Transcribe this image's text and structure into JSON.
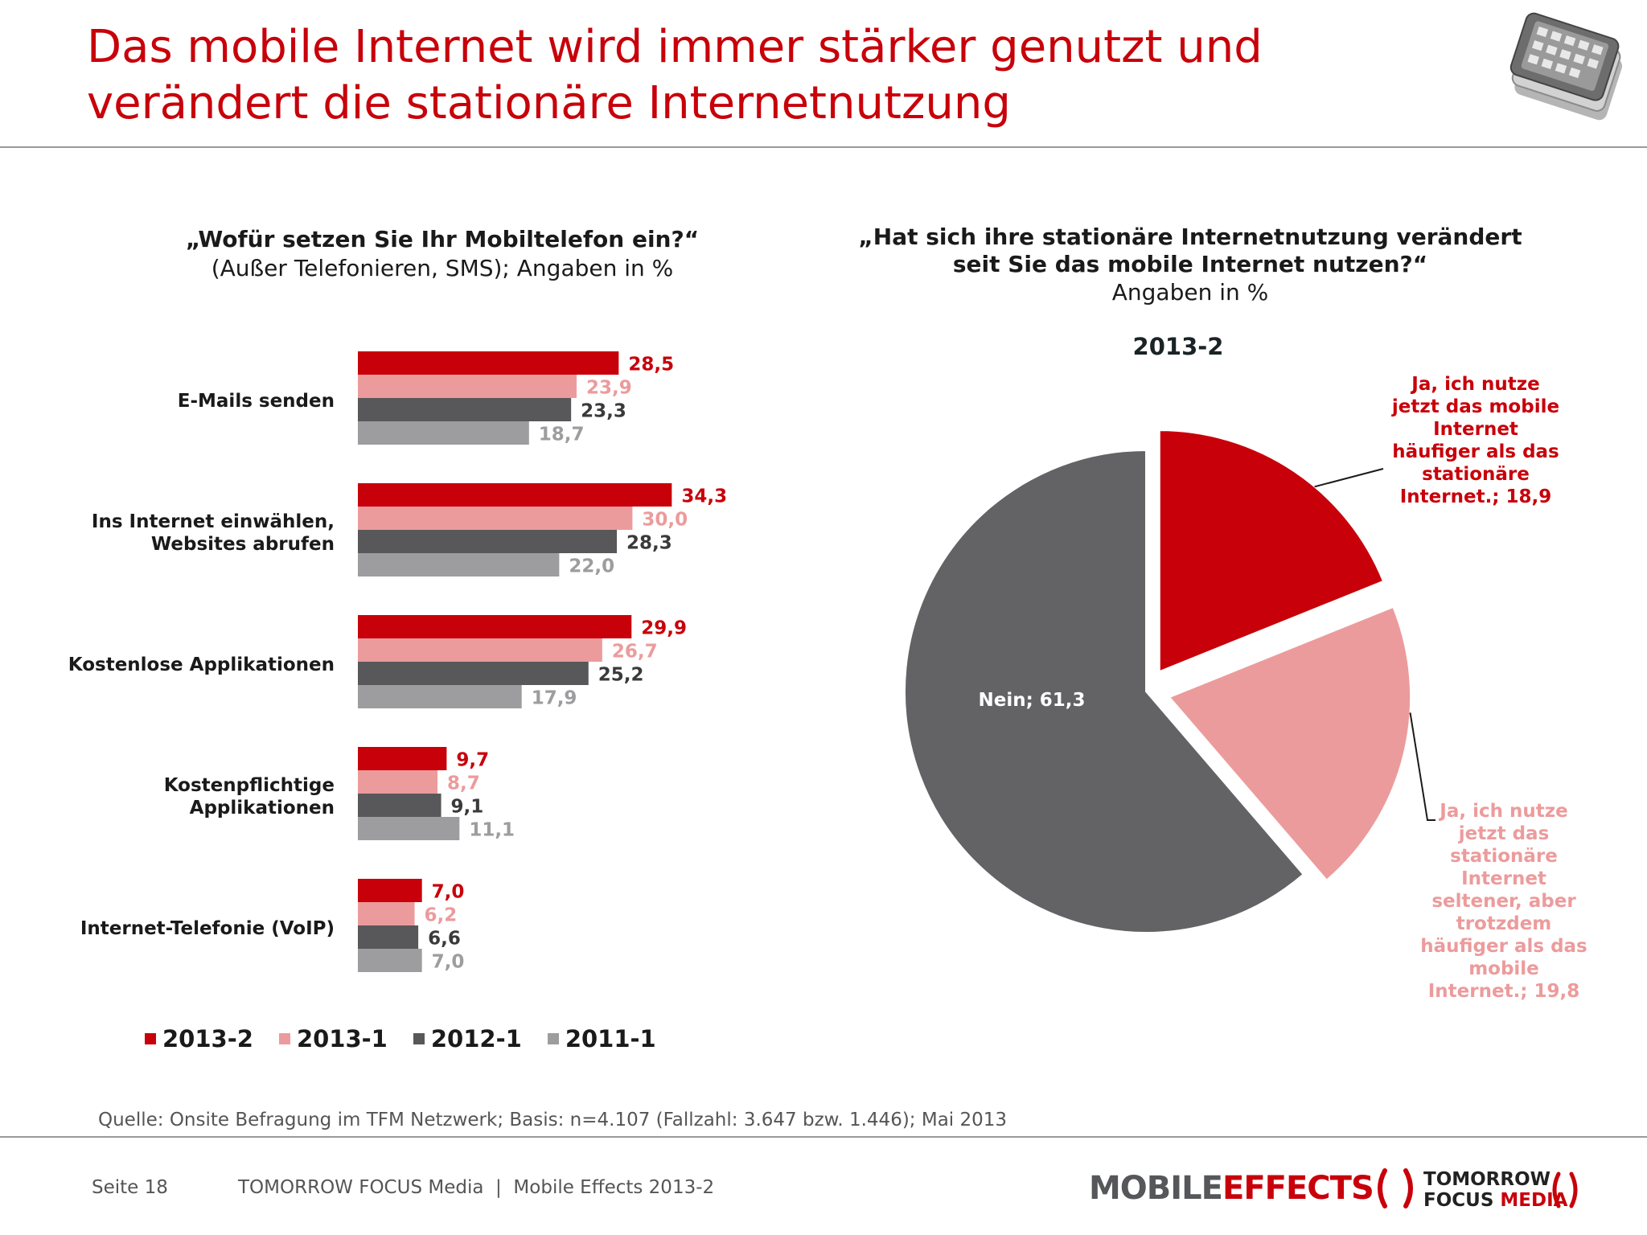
{
  "header": {
    "title_line1": "Das mobile Internet wird immer stärker genutzt und",
    "title_line2": "verändert die stationäre Internetnutzung",
    "icon": "smartphone-icon"
  },
  "bar_panel": {
    "question": "„Wofür setzen Sie Ihr Mobiltelefon ein?“",
    "subtitle": "(Außer Telefonieren, SMS); Angaben in %"
  },
  "pie_panel": {
    "question_line1": "„Hat sich ihre stationäre Internetnutzung verändert",
    "question_line2": "seit Sie das mobile Internet nutzen?“",
    "subtitle": "Angaben in %"
  },
  "chart_data": [
    {
      "type": "bar",
      "orientation": "horizontal",
      "categories": [
        "E-Mails senden",
        "Ins Internet einwählen,\nWebsites abrufen",
        "Kostenlose Applikationen",
        "Kostenpflichtige\nApplikationen",
        "Internet-Telefonie (VoIP)"
      ],
      "category_lines": [
        [
          "E-Mails senden"
        ],
        [
          "Ins Internet einwählen,",
          "Websites abrufen"
        ],
        [
          "Kostenlose Applikationen"
        ],
        [
          "Kostenpflichtige",
          "Applikationen"
        ],
        [
          "Internet-Telefonie (VoIP)"
        ]
      ],
      "series": [
        {
          "name": "2013-2",
          "color": "#c8000a",
          "label_color": "#c8000a",
          "values": [
            28.5,
            34.3,
            29.9,
            9.7,
            7.0
          ],
          "labels": [
            "28,5",
            "34,3",
            "29,9",
            "9,7",
            "7,0"
          ]
        },
        {
          "name": "2013-1",
          "color": "#ec9b9c",
          "label_color": "#ec9b9c",
          "values": [
            23.9,
            30.0,
            26.7,
            8.7,
            6.2
          ],
          "labels": [
            "23,9",
            "30,0",
            "26,7",
            "8,7",
            "6,2"
          ]
        },
        {
          "name": "2012-1",
          "color": "#58585a",
          "label_color": "#3a3a3a",
          "values": [
            23.3,
            28.3,
            25.2,
            9.1,
            6.6
          ],
          "labels": [
            "23,3",
            "28,3",
            "25,2",
            "9,1",
            "6,6"
          ]
        },
        {
          "name": "2011-1",
          "color": "#9d9c9e",
          "label_color": "#9d9c9e",
          "values": [
            18.7,
            22.0,
            17.9,
            11.1,
            7.0
          ],
          "labels": [
            "18,7",
            "22,0",
            "17,9",
            "11,1",
            "7,0"
          ]
        }
      ],
      "xlim": [
        0,
        40
      ],
      "grid": false,
      "legend_position": "bottom"
    },
    {
      "type": "pie",
      "title": "2013-2",
      "slices": [
        {
          "label_lines": [
            "Ja, ich nutze",
            "jetzt das mobile",
            "Internet",
            "häufiger als das",
            "stationäre",
            "Internet.; 18,9"
          ],
          "value": 18.9,
          "color": "#c8000a",
          "label_color": "#c8000a",
          "exploded": true
        },
        {
          "label_lines": [
            "Ja, ich nutze",
            "jetzt das",
            "stationäre",
            "Internet",
            "seltener, aber",
            "trotzdem",
            "häufiger als das",
            "mobile",
            "Internet.; 19,8"
          ],
          "value": 19.8,
          "color": "#ec9b9c",
          "label_color": "#ec9b9c",
          "exploded": true
        },
        {
          "label_lines": [
            "Nein; 61,3"
          ],
          "value": 61.3,
          "color": "#636265",
          "label_color": "#ffffff",
          "exploded": false
        }
      ]
    }
  ],
  "source": "Quelle: Onsite Befragung im TFM Netzwerk; Basis: n=4.107 (Fallzahl: 3.647 bzw. 1.446); Mai 2013",
  "footer": {
    "page": "Seite 18",
    "text": "TOMORROW FOCUS Media  |  Mobile Effects 2013-2",
    "brand1_a": "MOBILE",
    "brand1_b": "EFFECTS",
    "brand2_line1": "TOMORROW",
    "brand2_line2a": "FOCUS",
    "brand2_line2b": "MEDIA"
  }
}
